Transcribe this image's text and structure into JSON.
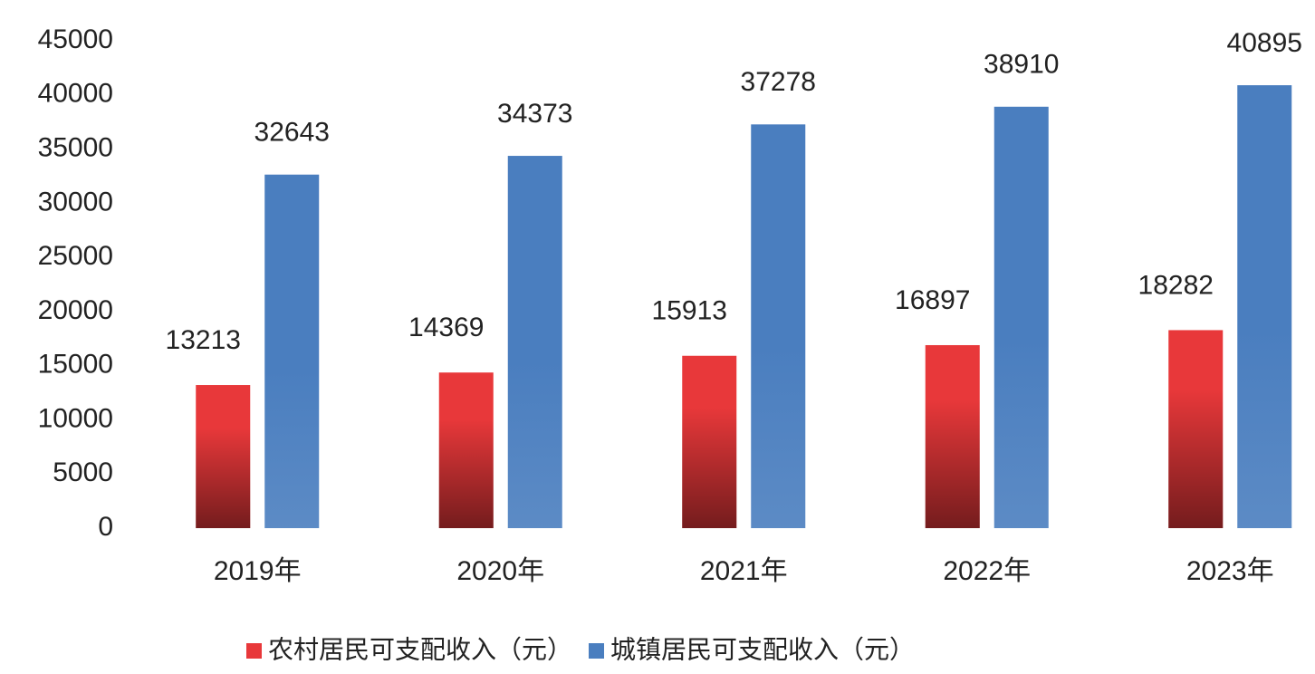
{
  "chart_data": {
    "type": "bar",
    "categories": [
      "2019年",
      "2020年",
      "2021年",
      "2022年",
      "2023年"
    ],
    "series": [
      {
        "name": "农村居民可支配收入（元）",
        "color": "#e8383a",
        "values": [
          13213,
          14369,
          15913,
          16897,
          18282
        ]
      },
      {
        "name": "城镇居民可支配收入（元）",
        "color": "#4a7ebf",
        "values": [
          32643,
          34373,
          37278,
          38910,
          40895
        ]
      }
    ],
    "ylim": [
      0,
      45000
    ],
    "yticks": [
      0,
      5000,
      10000,
      15000,
      20000,
      25000,
      30000,
      35000,
      40000,
      45000
    ],
    "grid": false,
    "legend": "bottom"
  }
}
